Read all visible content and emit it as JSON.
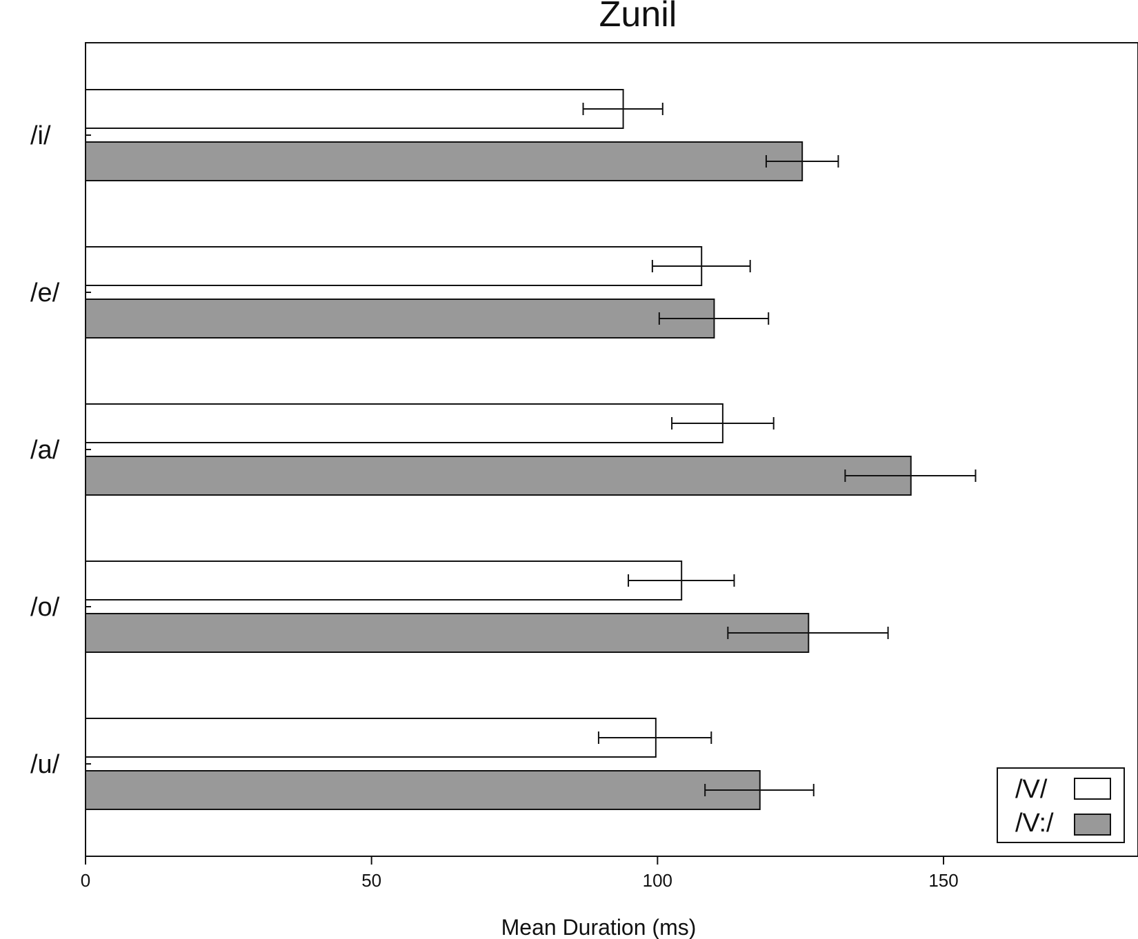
{
  "chart_data": {
    "type": "bar",
    "orientation": "horizontal",
    "title": "Zunil",
    "xlabel": "Mean Duration (ms)",
    "ylabel": "",
    "xlim": [
      0,
      184
    ],
    "xticks": [
      0,
      50,
      100,
      150
    ],
    "categories": [
      "/i/",
      "/e/",
      "/a/",
      "/o/",
      "/u/"
    ],
    "series": [
      {
        "name": "/V/",
        "color": "#ffffff",
        "values": [
          94,
          107.7,
          111.4,
          104.2,
          99.7
        ],
        "error_low": [
          87,
          99.1,
          102.5,
          94.9,
          89.7
        ],
        "error_high": [
          100.9,
          116.2,
          120.3,
          113.4,
          109.4
        ]
      },
      {
        "name": "/V:/",
        "color": "#999999",
        "values": [
          125.3,
          109.9,
          144.3,
          126.4,
          117.9
        ],
        "error_low": [
          119,
          100.3,
          132.8,
          112.3,
          108.3
        ],
        "error_high": [
          131.6,
          119.4,
          155.6,
          140.3,
          127.3
        ]
      }
    ],
    "legend_position": "bottom-right",
    "grid": false
  }
}
